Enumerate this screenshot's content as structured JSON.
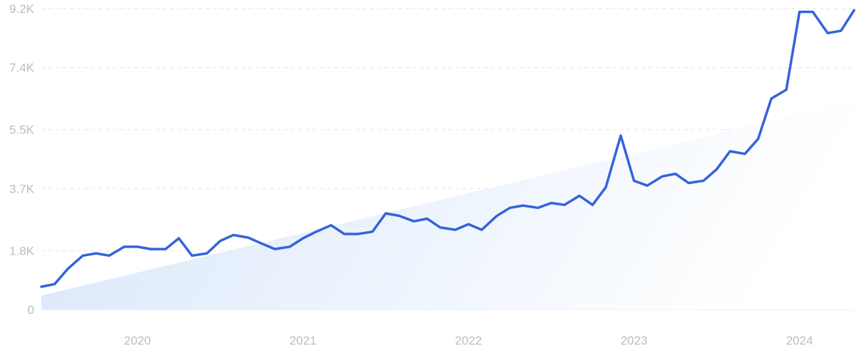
{
  "chart_data": {
    "type": "line",
    "title": "",
    "xlabel": "",
    "ylabel": "",
    "ylim": [
      0,
      9200
    ],
    "y_ticks": [
      {
        "value": 0,
        "label": "0"
      },
      {
        "value": 1800,
        "label": "1.8K"
      },
      {
        "value": 3700,
        "label": "3.7K"
      },
      {
        "value": 5500,
        "label": "5.5K"
      },
      {
        "value": 7400,
        "label": "7.4K"
      },
      {
        "value": 9200,
        "label": "9.2K"
      }
    ],
    "x_ticks": [
      {
        "value": 2020.0,
        "label": "2020"
      },
      {
        "value": 2021.0,
        "label": "2021"
      },
      {
        "value": 2022.0,
        "label": "2022"
      },
      {
        "value": 2023.0,
        "label": "2023"
      },
      {
        "value": 2024.0,
        "label": "2024"
      }
    ],
    "xlim": [
      2019.42,
      2024.33
    ],
    "grid": true,
    "series": [
      {
        "color": "#3563dc",
        "x": [
          2019.42,
          2019.5,
          2019.58,
          2019.67,
          2019.75,
          2019.83,
          2019.92,
          2020.0,
          2020.08,
          2020.17,
          2020.25,
          2020.33,
          2020.42,
          2020.5,
          2020.58,
          2020.67,
          2020.75,
          2020.83,
          2020.92,
          2021.0,
          2021.08,
          2021.17,
          2021.25,
          2021.33,
          2021.42,
          2021.5,
          2021.58,
          2021.67,
          2021.75,
          2021.83,
          2021.92,
          2022.0,
          2022.08,
          2022.17,
          2022.25,
          2022.33,
          2022.42,
          2022.5,
          2022.58,
          2022.67,
          2022.75,
          2022.83,
          2022.92,
          2023.0,
          2023.08,
          2023.17,
          2023.25,
          2023.33,
          2023.42,
          2023.5,
          2023.58,
          2023.67,
          2023.75,
          2023.83,
          2023.92,
          2024.0,
          2024.08,
          2024.17,
          2024.25,
          2024.33
        ],
        "values": [
          700,
          780,
          1250,
          1650,
          1720,
          1650,
          1920,
          1920,
          1850,
          1850,
          2180,
          1650,
          1720,
          2100,
          2280,
          2200,
          2020,
          1850,
          1920,
          2180,
          2380,
          2580,
          2310,
          2310,
          2380,
          2940,
          2870,
          2700,
          2780,
          2510,
          2440,
          2610,
          2440,
          2860,
          3110,
          3180,
          3110,
          3260,
          3200,
          3480,
          3200,
          3740,
          5320,
          3940,
          3790,
          4070,
          4150,
          3870,
          3940,
          4290,
          4840,
          4760,
          5220,
          6450,
          6720,
          9100,
          9100,
          8450,
          8520,
          9150
        ]
      }
    ],
    "trend_band": {
      "start": {
        "x": 2019.42,
        "y": 430
      },
      "end": {
        "x": 2024.33,
        "y": 6380
      },
      "color_start": "#d9e7fa",
      "color_end": "#ffffff"
    }
  }
}
